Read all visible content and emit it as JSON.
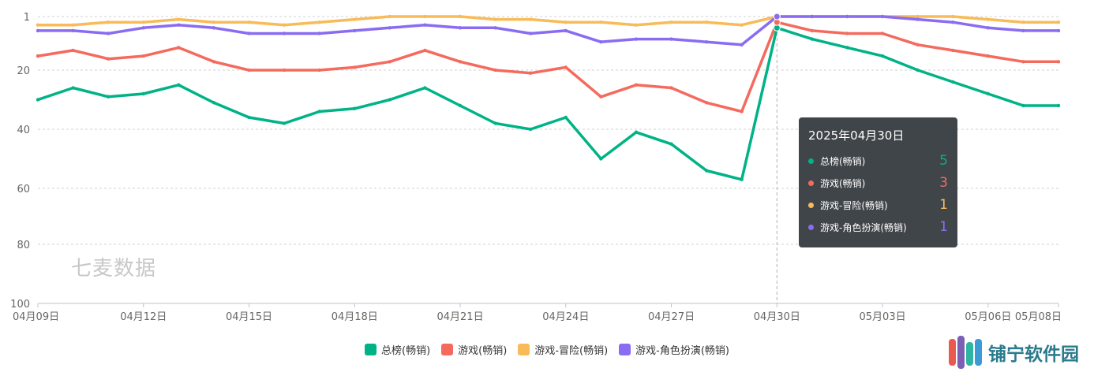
{
  "chart_data": {
    "type": "line",
    "x": [
      "04月09日",
      "04月10日",
      "04月11日",
      "04月12日",
      "04月13日",
      "04月14日",
      "04月15日",
      "04月16日",
      "04月17日",
      "04月18日",
      "04月19日",
      "04月20日",
      "04月21日",
      "04月22日",
      "04月23日",
      "04月24日",
      "04月25日",
      "04月26日",
      "04月27日",
      "04月28日",
      "04月29日",
      "04月30日",
      "05月01日",
      "05月02日",
      "05月03日",
      "05月04日",
      "05月05日",
      "05月06日",
      "05月07日",
      "05月08日"
    ],
    "x_tick_labels": [
      "04月09日",
      "04月12日",
      "04月15日",
      "04月18日",
      "04月21日",
      "04月24日",
      "04月27日",
      "04月30日",
      "05月03日",
      "05月06日",
      "05月08日"
    ],
    "x_tick_indices": [
      0,
      3,
      6,
      9,
      12,
      15,
      18,
      21,
      24,
      27,
      29
    ],
    "y_ticks": [
      "1",
      "20",
      "40",
      "60",
      "80",
      "100"
    ],
    "y_tick_values": [
      1,
      20,
      40,
      60,
      80,
      100
    ],
    "ylim": [
      1,
      100
    ],
    "y_inverted": true,
    "grid": true,
    "series": [
      {
        "name": "总榜(畅销)",
        "color": "#00b386",
        "values": [
          30,
          26,
          29,
          28,
          25,
          31,
          36,
          38,
          34,
          33,
          30,
          26,
          32,
          38,
          40,
          36,
          50,
          41,
          45,
          54,
          57,
          5,
          9,
          12,
          15,
          20,
          24,
          28,
          32,
          32
        ]
      },
      {
        "name": "游戏(畅销)",
        "color": "#f46b5e",
        "values": [
          15,
          13,
          16,
          15,
          12,
          17,
          20,
          20,
          20,
          19,
          17,
          13,
          17,
          20,
          21,
          19,
          29,
          25,
          26,
          31,
          34,
          3,
          6,
          7,
          7,
          11,
          13,
          15,
          17,
          17
        ]
      },
      {
        "name": "游戏-冒险(畅销)",
        "color": "#f8bb58",
        "values": [
          4,
          4,
          3,
          3,
          2,
          3,
          3,
          4,
          3,
          2,
          1,
          1,
          1,
          2,
          2,
          3,
          3,
          4,
          3,
          3,
          4,
          1,
          1,
          1,
          1,
          1,
          1,
          2,
          3,
          3
        ]
      },
      {
        "name": "游戏-角色扮演(畅销)",
        "color": "#8a6cf2",
        "values": [
          6,
          6,
          7,
          5,
          4,
          5,
          7,
          7,
          7,
          6,
          5,
          4,
          5,
          5,
          7,
          6,
          10,
          9,
          9,
          10,
          11,
          1,
          1,
          1,
          1,
          2,
          3,
          5,
          6,
          6
        ]
      }
    ],
    "legend": "bottom-center",
    "highlight_index": 21
  },
  "tooltip": {
    "title": "2025年04月30日",
    "rows": [
      {
        "name": "总榜(畅销)",
        "value": "5",
        "color": "#00b386"
      },
      {
        "name": "游戏(畅销)",
        "value": "3",
        "color": "#f46b5e"
      },
      {
        "name": "游戏-冒险(畅销)",
        "value": "1",
        "color": "#f8bb58"
      },
      {
        "name": "游戏-角色扮演(畅销)",
        "value": "1",
        "color": "#8a6cf2"
      }
    ]
  },
  "watermark": "七麦数据",
  "brand": {
    "label": "铺宁软件园"
  }
}
